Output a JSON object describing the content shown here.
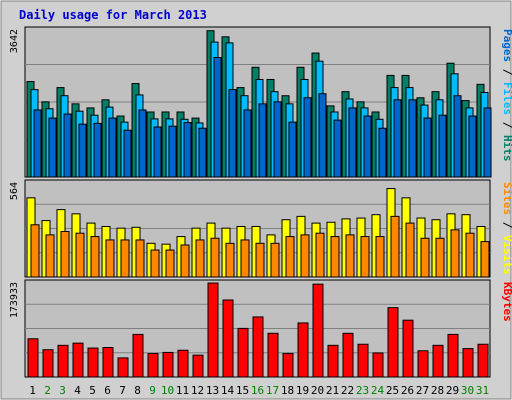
{
  "chart_data": {
    "type": "bar",
    "title": "Daily usage for March 2013",
    "days": [
      "1",
      "2",
      "3",
      "4",
      "5",
      "6",
      "7",
      "8",
      "9",
      "10",
      "11",
      "12",
      "13",
      "14",
      "15",
      "16",
      "17",
      "18",
      "19",
      "20",
      "21",
      "22",
      "23",
      "24",
      "25",
      "26",
      "27",
      "28",
      "29",
      "30",
      "31"
    ],
    "weekend_days": [
      "2",
      "3",
      "9",
      "10",
      "16",
      "17",
      "23",
      "24",
      "30",
      "31"
    ],
    "colors": {
      "hits": "#008066",
      "files": "#00bbff",
      "pages": "#0066cc",
      "visits": "#ffff00",
      "sites": "#ff8800",
      "kbytes": "#ff0000",
      "weekday_label": "#000000",
      "weekend_label": "#008000",
      "title": "#0000cc",
      "panel": "#c0c0c0",
      "frame": "#d0d0d0"
    },
    "hits_panel": {
      "max_label": "3642",
      "ymax": 3642,
      "series": [
        {
          "name": "Hits",
          "values": [
            2350,
            1850,
            2200,
            1800,
            1700,
            1900,
            1500,
            2300,
            1600,
            1600,
            1600,
            1450,
            3600,
            3450,
            2200,
            2700,
            2400,
            2000,
            2700,
            3050,
            1750,
            2100,
            1850,
            1600,
            2500,
            2500,
            1950,
            2100,
            2800,
            1880,
            2280
          ]
        },
        {
          "name": "Files",
          "values": [
            2150,
            1680,
            2000,
            1620,
            1520,
            1720,
            1350,
            2020,
            1430,
            1430,
            1420,
            1330,
            3320,
            3300,
            2000,
            2400,
            2100,
            1800,
            2400,
            2850,
            1600,
            1920,
            1700,
            1420,
            2200,
            2200,
            1770,
            1900,
            2540,
            1700,
            2080
          ]
        },
        {
          "name": "Pages",
          "values": [
            1650,
            1450,
            1550,
            1300,
            1320,
            1450,
            1150,
            1650,
            1230,
            1250,
            1340,
            1200,
            2940,
            2150,
            1650,
            1800,
            1850,
            1350,
            1950,
            2050,
            1400,
            1700,
            1500,
            1200,
            1900,
            1900,
            1450,
            1520,
            2000,
            1500,
            1700
          ]
        }
      ],
      "legend": [
        "Pages",
        "Files",
        "Hits"
      ]
    },
    "visits_panel": {
      "max_label": "564",
      "ymax": 564,
      "series": [
        {
          "name": "Visits",
          "values": [
            470,
            335,
            400,
            375,
            320,
            300,
            290,
            295,
            200,
            195,
            240,
            290,
            320,
            290,
            300,
            300,
            250,
            340,
            360,
            320,
            325,
            345,
            350,
            370,
            525,
            470,
            350,
            340,
            375,
            370,
            300
          ]
        },
        {
          "name": "Sites",
          "values": [
            310,
            250,
            270,
            260,
            240,
            220,
            220,
            220,
            160,
            160,
            190,
            220,
            230,
            200,
            220,
            200,
            200,
            240,
            250,
            260,
            240,
            250,
            240,
            240,
            360,
            320,
            230,
            230,
            280,
            260,
            210
          ]
        }
      ],
      "legend": [
        "Sites",
        "Visits"
      ]
    },
    "kbytes_panel": {
      "max_label": "173933",
      "ymax": 173933,
      "series": [
        {
          "name": "KBytes",
          "values": [
            70000,
            50000,
            58000,
            62000,
            53000,
            54000,
            35000,
            78000,
            43000,
            45000,
            49000,
            40000,
            172000,
            141000,
            89000,
            110000,
            80000,
            43000,
            99000,
            170000,
            58000,
            80000,
            60000,
            44000,
            127000,
            104000,
            48000,
            58000,
            78000,
            52000,
            60000
          ]
        }
      ],
      "legend": [
        "KBytes"
      ]
    }
  }
}
